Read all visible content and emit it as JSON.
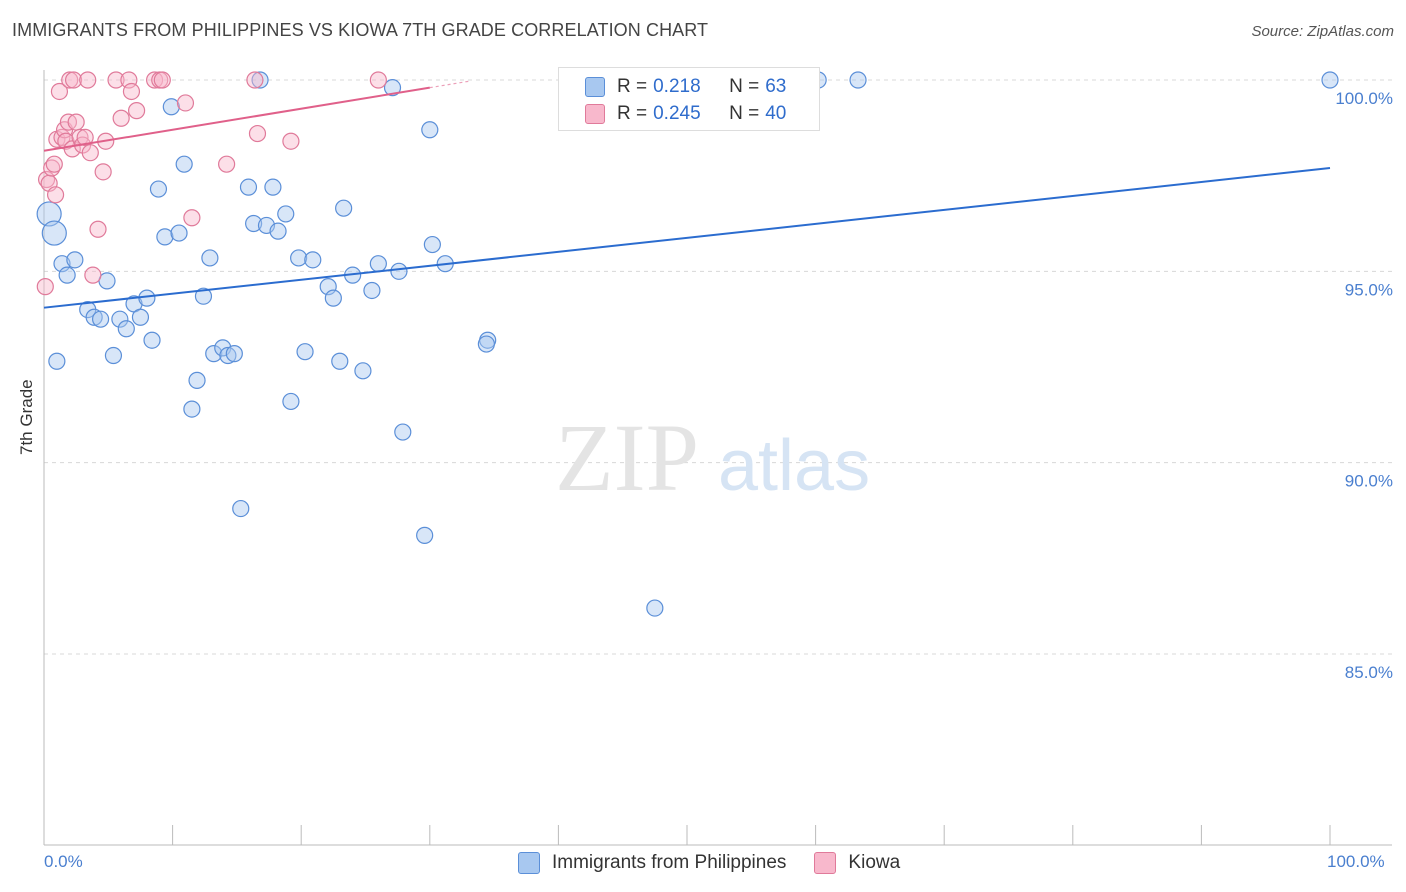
{
  "title": "IMMIGRANTS FROM PHILIPPINES VS KIOWA 7TH GRADE CORRELATION CHART",
  "source": "Source: ZipAtlas.com",
  "watermark": {
    "zip": "ZIP",
    "atlas": "atlas"
  },
  "legend": {
    "r_label": "R =",
    "n_label": "N =",
    "series": [
      {
        "r": "0.218",
        "n": "63",
        "color": "#a8c8f0",
        "edge": "#5b8fd8"
      },
      {
        "r": "0.245",
        "n": "40",
        "color": "#f8b8cc",
        "edge": "#e07a9a"
      }
    ]
  },
  "chart_data": {
    "type": "scatter",
    "xlabel": "",
    "ylabel": "7th Grade",
    "xlim": [
      0,
      100
    ],
    "ylim": [
      80.2,
      100.5
    ],
    "x_tick_labels": [
      "0.0%",
      "100.0%"
    ],
    "y_ticks": [
      85,
      90,
      95,
      100
    ],
    "y_tick_labels": [
      "85.0%",
      "90.0%",
      "95.0%",
      "100.0%"
    ],
    "grid": true,
    "series": [
      {
        "name": "Immigrants from Philippines",
        "color": "#a8c8f0",
        "edge": "#5b8fd8",
        "trend": {
          "x": [
            0,
            100
          ],
          "y": [
            94.05,
            97.7
          ],
          "color": "#2b6ccf"
        },
        "points": [
          [
            0.4,
            96.5
          ],
          [
            0.8,
            96.0
          ],
          [
            1.4,
            95.2
          ],
          [
            1.8,
            94.9
          ],
          [
            2.4,
            95.3
          ],
          [
            3.4,
            94.0
          ],
          [
            3.9,
            93.8
          ],
          [
            4.4,
            93.75
          ],
          [
            4.9,
            94.75
          ],
          [
            5.4,
            92.8
          ],
          [
            5.9,
            93.75
          ],
          [
            6.4,
            93.5
          ],
          [
            7.0,
            94.15
          ],
          [
            7.5,
            93.8
          ],
          [
            8.0,
            94.3
          ],
          [
            8.4,
            93.2
          ],
          [
            8.9,
            97.15
          ],
          [
            9.4,
            95.9
          ],
          [
            9.9,
            99.3
          ],
          [
            10.5,
            96.0
          ],
          [
            10.9,
            97.8
          ],
          [
            11.9,
            92.15
          ],
          [
            11.5,
            91.4
          ],
          [
            12.4,
            94.35
          ],
          [
            12.9,
            95.35
          ],
          [
            13.2,
            92.85
          ],
          [
            13.9,
            93.0
          ],
          [
            14.3,
            92.8
          ],
          [
            14.8,
            92.85
          ],
          [
            15.3,
            88.8
          ],
          [
            15.9,
            97.2
          ],
          [
            16.3,
            96.25
          ],
          [
            16.8,
            100.0
          ],
          [
            17.3,
            96.2
          ],
          [
            17.8,
            97.2
          ],
          [
            18.2,
            96.05
          ],
          [
            18.8,
            96.5
          ],
          [
            19.2,
            91.6
          ],
          [
            19.8,
            95.35
          ],
          [
            20.3,
            92.9
          ],
          [
            20.9,
            95.3
          ],
          [
            22.1,
            94.6
          ],
          [
            22.5,
            94.3
          ],
          [
            23.0,
            92.65
          ],
          [
            23.3,
            96.65
          ],
          [
            24.0,
            94.9
          ],
          [
            24.8,
            92.4
          ],
          [
            25.5,
            94.5
          ],
          [
            26.0,
            95.2
          ],
          [
            27.1,
            99.8
          ],
          [
            27.6,
            95.0
          ],
          [
            27.9,
            90.8
          ],
          [
            29.6,
            88.1
          ],
          [
            30.0,
            98.7
          ],
          [
            30.2,
            95.7
          ],
          [
            31.2,
            95.2
          ],
          [
            34.5,
            93.2
          ],
          [
            34.4,
            93.1
          ],
          [
            47.5,
            86.2
          ],
          [
            60.2,
            100.0
          ],
          [
            63.3,
            100.0
          ],
          [
            100.0,
            100.0
          ],
          [
            1.0,
            92.65
          ]
        ]
      },
      {
        "name": "Kiowa",
        "color": "#f8b8cc",
        "edge": "#e07a9a",
        "trend": {
          "x": [
            0,
            30
          ],
          "y": [
            98.15,
            99.8
          ],
          "color": "#e0608a"
        },
        "points": [
          [
            0.1,
            94.6
          ],
          [
            0.2,
            97.4
          ],
          [
            0.4,
            97.3
          ],
          [
            0.6,
            97.7
          ],
          [
            0.8,
            97.8
          ],
          [
            0.9,
            97.0
          ],
          [
            1.0,
            98.45
          ],
          [
            1.2,
            99.7
          ],
          [
            1.4,
            98.5
          ],
          [
            1.6,
            98.7
          ],
          [
            1.7,
            98.4
          ],
          [
            1.9,
            98.9
          ],
          [
            2.0,
            100.0
          ],
          [
            2.2,
            98.2
          ],
          [
            2.3,
            100.0
          ],
          [
            2.5,
            98.9
          ],
          [
            2.8,
            98.5
          ],
          [
            3.0,
            98.3
          ],
          [
            3.2,
            98.5
          ],
          [
            3.4,
            100.0
          ],
          [
            3.6,
            98.1
          ],
          [
            3.8,
            94.9
          ],
          [
            4.2,
            96.1
          ],
          [
            4.6,
            97.6
          ],
          [
            4.8,
            98.4
          ],
          [
            5.6,
            100.0
          ],
          [
            6.0,
            99.0
          ],
          [
            6.6,
            100.0
          ],
          [
            6.8,
            99.7
          ],
          [
            7.2,
            99.2
          ],
          [
            8.6,
            100.0
          ],
          [
            9.0,
            100.0
          ],
          [
            9.2,
            100.0
          ],
          [
            11.0,
            99.4
          ],
          [
            11.5,
            96.4
          ],
          [
            14.2,
            97.8
          ],
          [
            16.4,
            100.0
          ],
          [
            16.6,
            98.6
          ],
          [
            19.2,
            98.4
          ],
          [
            26.0,
            100.0
          ]
        ]
      }
    ]
  }
}
